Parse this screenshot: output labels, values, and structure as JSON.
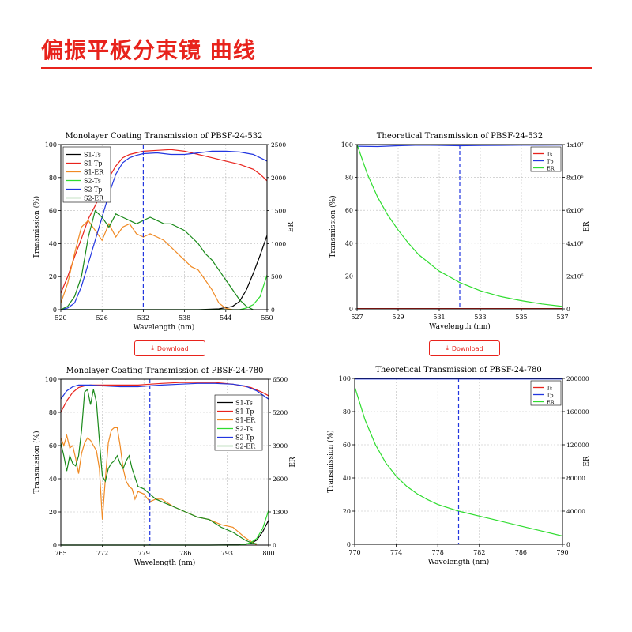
{
  "page_title": "偏振平板分束镜  曲线",
  "download_label": "Download",
  "chart_data": [
    {
      "type": "line",
      "title": "Monolayer Coating Transmission of PBSF-24-532",
      "xlabel": "Wavelength (nm)",
      "ylabel": "Transmission (%)",
      "y2label": "ER",
      "xlim": [
        520,
        550
      ],
      "ylim": [
        0,
        100
      ],
      "y2lim": [
        0,
        2500
      ],
      "xticks": [
        "520",
        "526",
        "532",
        "538",
        "544",
        "550"
      ],
      "yticks": [
        "0",
        "20",
        "40",
        "60",
        "80",
        "100"
      ],
      "y2ticks": [
        "0",
        "500",
        "1000",
        "1500",
        "2000",
        "2500"
      ],
      "vline": 532,
      "grid": true,
      "legend_position": "top-left",
      "series": [
        {
          "name": "S1-Ts",
          "color": "#000000",
          "axis": "left",
          "x": [
            520,
            530,
            540,
            543,
            545,
            546,
            547,
            548,
            549,
            550
          ],
          "y": [
            0,
            0,
            0,
            0.5,
            2,
            5,
            12,
            22,
            33,
            45
          ]
        },
        {
          "name": "S1-Tp",
          "color": "#e8231c",
          "axis": "left",
          "x": [
            520,
            521,
            522,
            523,
            524,
            525,
            526,
            527,
            528,
            529,
            530,
            532,
            534,
            536,
            538,
            540,
            542,
            544,
            546,
            548,
            549,
            550
          ],
          "y": [
            10,
            20,
            32,
            43,
            55,
            63,
            72,
            80,
            87,
            92,
            94,
            96,
            96.5,
            97,
            96,
            94,
            92,
            90,
            88,
            85,
            82,
            78
          ]
        },
        {
          "name": "S1-ER",
          "color": "#f08a24",
          "axis": "right",
          "x": [
            520,
            521,
            522,
            523,
            524,
            525,
            526,
            527,
            528,
            529,
            530,
            531,
            532,
            533,
            534,
            535,
            536,
            537,
            538,
            539,
            540,
            541,
            542,
            543,
            544,
            545
          ],
          "y": [
            100,
            400,
            850,
            1250,
            1350,
            1200,
            1050,
            1300,
            1100,
            1250,
            1300,
            1150,
            1100,
            1150,
            1100,
            1050,
            950,
            850,
            750,
            650,
            600,
            450,
            300,
            100,
            20,
            0
          ]
        },
        {
          "name": "S2-Ts",
          "color": "#2fdc2f",
          "axis": "left",
          "x": [
            520,
            530,
            540,
            546,
            547,
            548,
            549,
            550
          ],
          "y": [
            0,
            0,
            0,
            0,
            1,
            3,
            8,
            21
          ]
        },
        {
          "name": "S2-Tp",
          "color": "#2236e0",
          "axis": "left",
          "x": [
            520,
            521,
            522,
            523,
            524,
            525,
            526,
            527,
            528,
            529,
            530,
            531,
            532,
            534,
            536,
            538,
            540,
            542,
            544,
            546,
            548,
            549,
            550
          ],
          "y": [
            0,
            1,
            4,
            14,
            28,
            42,
            56,
            70,
            82,
            89,
            92,
            93.5,
            94.5,
            95,
            94,
            94,
            95,
            96,
            96,
            95.5,
            94,
            92,
            90
          ]
        },
        {
          "name": "S2-ER",
          "color": "#1a8a1a",
          "axis": "right",
          "x": [
            520,
            521,
            522,
            523,
            524,
            525,
            526,
            527,
            528,
            529,
            530,
            531,
            532,
            533,
            534,
            535,
            536,
            537,
            538,
            539,
            540,
            541,
            542,
            543,
            544,
            545,
            546,
            547,
            548
          ],
          "y": [
            0,
            50,
            200,
            500,
            1100,
            1500,
            1400,
            1250,
            1450,
            1400,
            1350,
            1300,
            1350,
            1400,
            1350,
            1300,
            1300,
            1250,
            1200,
            1100,
            1000,
            850,
            750,
            600,
            450,
            300,
            150,
            50,
            0
          ]
        }
      ]
    },
    {
      "type": "line",
      "title": "Theoretical Transmission of PBSF-24-532",
      "xlabel": "Wavelength (nm)",
      "ylabel": "Transmission (%)",
      "y2label": "ER",
      "xlim": [
        527,
        537
      ],
      "ylim": [
        0,
        100
      ],
      "y2lim": [
        0,
        10000000
      ],
      "xticks": [
        "527",
        "529",
        "531",
        "533",
        "535",
        "537"
      ],
      "yticks": [
        "0",
        "20",
        "40",
        "60",
        "80",
        "100"
      ],
      "y2ticks": [
        "0",
        "2x10⁶",
        "4x10⁶",
        "6x10⁶",
        "8x10⁶",
        "1x10⁷"
      ],
      "vline": 532,
      "grid": true,
      "legend_position": "top-right",
      "series": [
        {
          "name": "Ts",
          "color": "#e8231c",
          "axis": "left",
          "x": [
            527,
            537
          ],
          "y": [
            0.2,
            0.2
          ]
        },
        {
          "name": "Tp",
          "color": "#2236e0",
          "axis": "left",
          "x": [
            527,
            528,
            529,
            530,
            531,
            532,
            533,
            534,
            535,
            536,
            537
          ],
          "y": [
            99,
            98.8,
            99.3,
            99.6,
            99.5,
            99.3,
            99.4,
            99.5,
            99.6,
            99.6,
            99.7
          ]
        },
        {
          "name": "ER",
          "color": "#2fdc2f",
          "axis": "right",
          "x": [
            527,
            527.5,
            528,
            528.5,
            529,
            529.5,
            530,
            530.5,
            531,
            531.5,
            532,
            533,
            534,
            535,
            536,
            537
          ],
          "y": [
            10000000,
            8200000,
            6800000,
            5700000,
            4800000,
            4000000,
            3300000,
            2800000,
            2300000,
            1950000,
            1600000,
            1100000,
            750000,
            500000,
            300000,
            150000
          ]
        }
      ]
    },
    {
      "type": "line",
      "title": "Monolayer Coating Transmission of PBSF-24-780",
      "xlabel": "Wavelength (nm)",
      "ylabel": "Transmission (%)",
      "y2label": "ER",
      "xlim": [
        765,
        800
      ],
      "ylim": [
        0,
        100
      ],
      "y2lim": [
        0,
        6500
      ],
      "xticks": [
        "765",
        "772",
        "779",
        "786",
        "793",
        "800"
      ],
      "yticks": [
        "0",
        "20",
        "40",
        "60",
        "80",
        "100"
      ],
      "y2ticks": [
        "0",
        "1300",
        "2600",
        "3900",
        "5200",
        "6500"
      ],
      "vline": 780,
      "grid": true,
      "legend_position": "top-right",
      "series": [
        {
          "name": "S1-Ts",
          "color": "#000000",
          "axis": "left",
          "x": [
            765,
            790,
            795,
            797,
            798,
            799,
            800
          ],
          "y": [
            0,
            0,
            0.2,
            1,
            3,
            8,
            15
          ]
        },
        {
          "name": "S1-Tp",
          "color": "#e8231c",
          "axis": "left",
          "x": [
            765,
            766,
            767,
            768,
            769,
            770,
            772,
            775,
            778,
            780,
            782,
            785,
            788,
            791,
            794,
            797,
            799,
            800
          ],
          "y": [
            80,
            87,
            92,
            95,
            96,
            96.5,
            96.5,
            96.5,
            96.5,
            97,
            97.5,
            98,
            98,
            98,
            97,
            95,
            92,
            90
          ]
        },
        {
          "name": "S1-ER",
          "color": "#f08a24",
          "axis": "right",
          "x": [
            765,
            765.5,
            766,
            766.5,
            767,
            767.5,
            768,
            768.5,
            769,
            769.5,
            770,
            770.5,
            771,
            771.5,
            772,
            772.5,
            773,
            773.5,
            774,
            774.5,
            775,
            775.5,
            776,
            776.5,
            777,
            777.5,
            778,
            779,
            780,
            781,
            782,
            784,
            786,
            788,
            790,
            792,
            794,
            796,
            798
          ],
          "y": [
            4200,
            3900,
            4300,
            3800,
            3900,
            3400,
            2800,
            3600,
            4000,
            4200,
            4100,
            3900,
            3700,
            3000,
            1000,
            2600,
            4000,
            4500,
            4600,
            4600,
            3900,
            3000,
            2500,
            2300,
            2200,
            1800,
            2100,
            2000,
            1700,
            1800,
            1800,
            1500,
            1300,
            1100,
            1000,
            800,
            700,
            300,
            0
          ]
        },
        {
          "name": "S2-Ts",
          "color": "#2fdc2f",
          "axis": "left",
          "x": [
            765,
            795,
            796,
            797,
            798,
            799,
            800
          ],
          "y": [
            0,
            0,
            0.5,
            1.5,
            4,
            10,
            21
          ]
        },
        {
          "name": "S2-Tp",
          "color": "#2236e0",
          "axis": "left",
          "x": [
            765,
            766,
            767,
            768,
            770,
            772,
            775,
            778,
            780,
            782,
            785,
            788,
            791,
            794,
            796,
            798,
            800
          ],
          "y": [
            88,
            93,
            95.5,
            96.5,
            96.5,
            96,
            95.5,
            95.5,
            96,
            96.5,
            97,
            97.5,
            97.5,
            97,
            96,
            93,
            88
          ]
        },
        {
          "name": "S2-ER",
          "color": "#1a8a1a",
          "axis": "right",
          "x": [
            765,
            765.5,
            766,
            766.5,
            767,
            767.5,
            768,
            768.5,
            769,
            769.5,
            770,
            770.5,
            771,
            771.5,
            772,
            772.5,
            773,
            773.5,
            774,
            774.5,
            775,
            775.5,
            776,
            776.5,
            777,
            778,
            779,
            780,
            781,
            782,
            784,
            786,
            788,
            790,
            792,
            794,
            796,
            797,
            798
          ],
          "y": [
            4000,
            3500,
            2900,
            3500,
            3200,
            3100,
            3500,
            4500,
            6000,
            6100,
            5500,
            6100,
            5600,
            4100,
            2700,
            2500,
            3000,
            3200,
            3300,
            3500,
            3200,
            3000,
            3300,
            3500,
            3000,
            2300,
            2200,
            2000,
            1800,
            1700,
            1500,
            1300,
            1100,
            1000,
            700,
            500,
            200,
            100,
            50
          ]
        }
      ]
    },
    {
      "type": "line",
      "title": "Theoretical Transmission of PBSF-24-780",
      "xlabel": "Wavelength (nm)",
      "ylabel": "Transmission (%)",
      "y2label": "ER",
      "xlim": [
        770,
        790
      ],
      "ylim": [
        0,
        100
      ],
      "y2lim": [
        0,
        200000
      ],
      "xticks": [
        "770",
        "774",
        "778",
        "782",
        "786",
        "790"
      ],
      "yticks": [
        "0",
        "20",
        "40",
        "60",
        "80",
        "100"
      ],
      "y2ticks": [
        "0",
        "40000",
        "80000",
        "120000",
        "160000",
        "200000"
      ],
      "vline": 780,
      "grid": true,
      "legend_position": "top-right",
      "series": [
        {
          "name": "Ts",
          "color": "#e8231c",
          "axis": "left",
          "x": [
            770,
            790
          ],
          "y": [
            0.1,
            0.1
          ]
        },
        {
          "name": "Tp",
          "color": "#2236e0",
          "axis": "left",
          "x": [
            770,
            790
          ],
          "y": [
            99.6,
            99.6
          ]
        },
        {
          "name": "ER",
          "color": "#2fdc2f",
          "axis": "right",
          "x": [
            770,
            771,
            772,
            773,
            774,
            775,
            776,
            777,
            778,
            779,
            780,
            782,
            784,
            786,
            788,
            790
          ],
          "y": [
            190000,
            150000,
            120000,
            98000,
            82000,
            70000,
            61000,
            54000,
            48000,
            44000,
            40000,
            34000,
            28000,
            22000,
            16000,
            10000
          ]
        }
      ]
    }
  ]
}
